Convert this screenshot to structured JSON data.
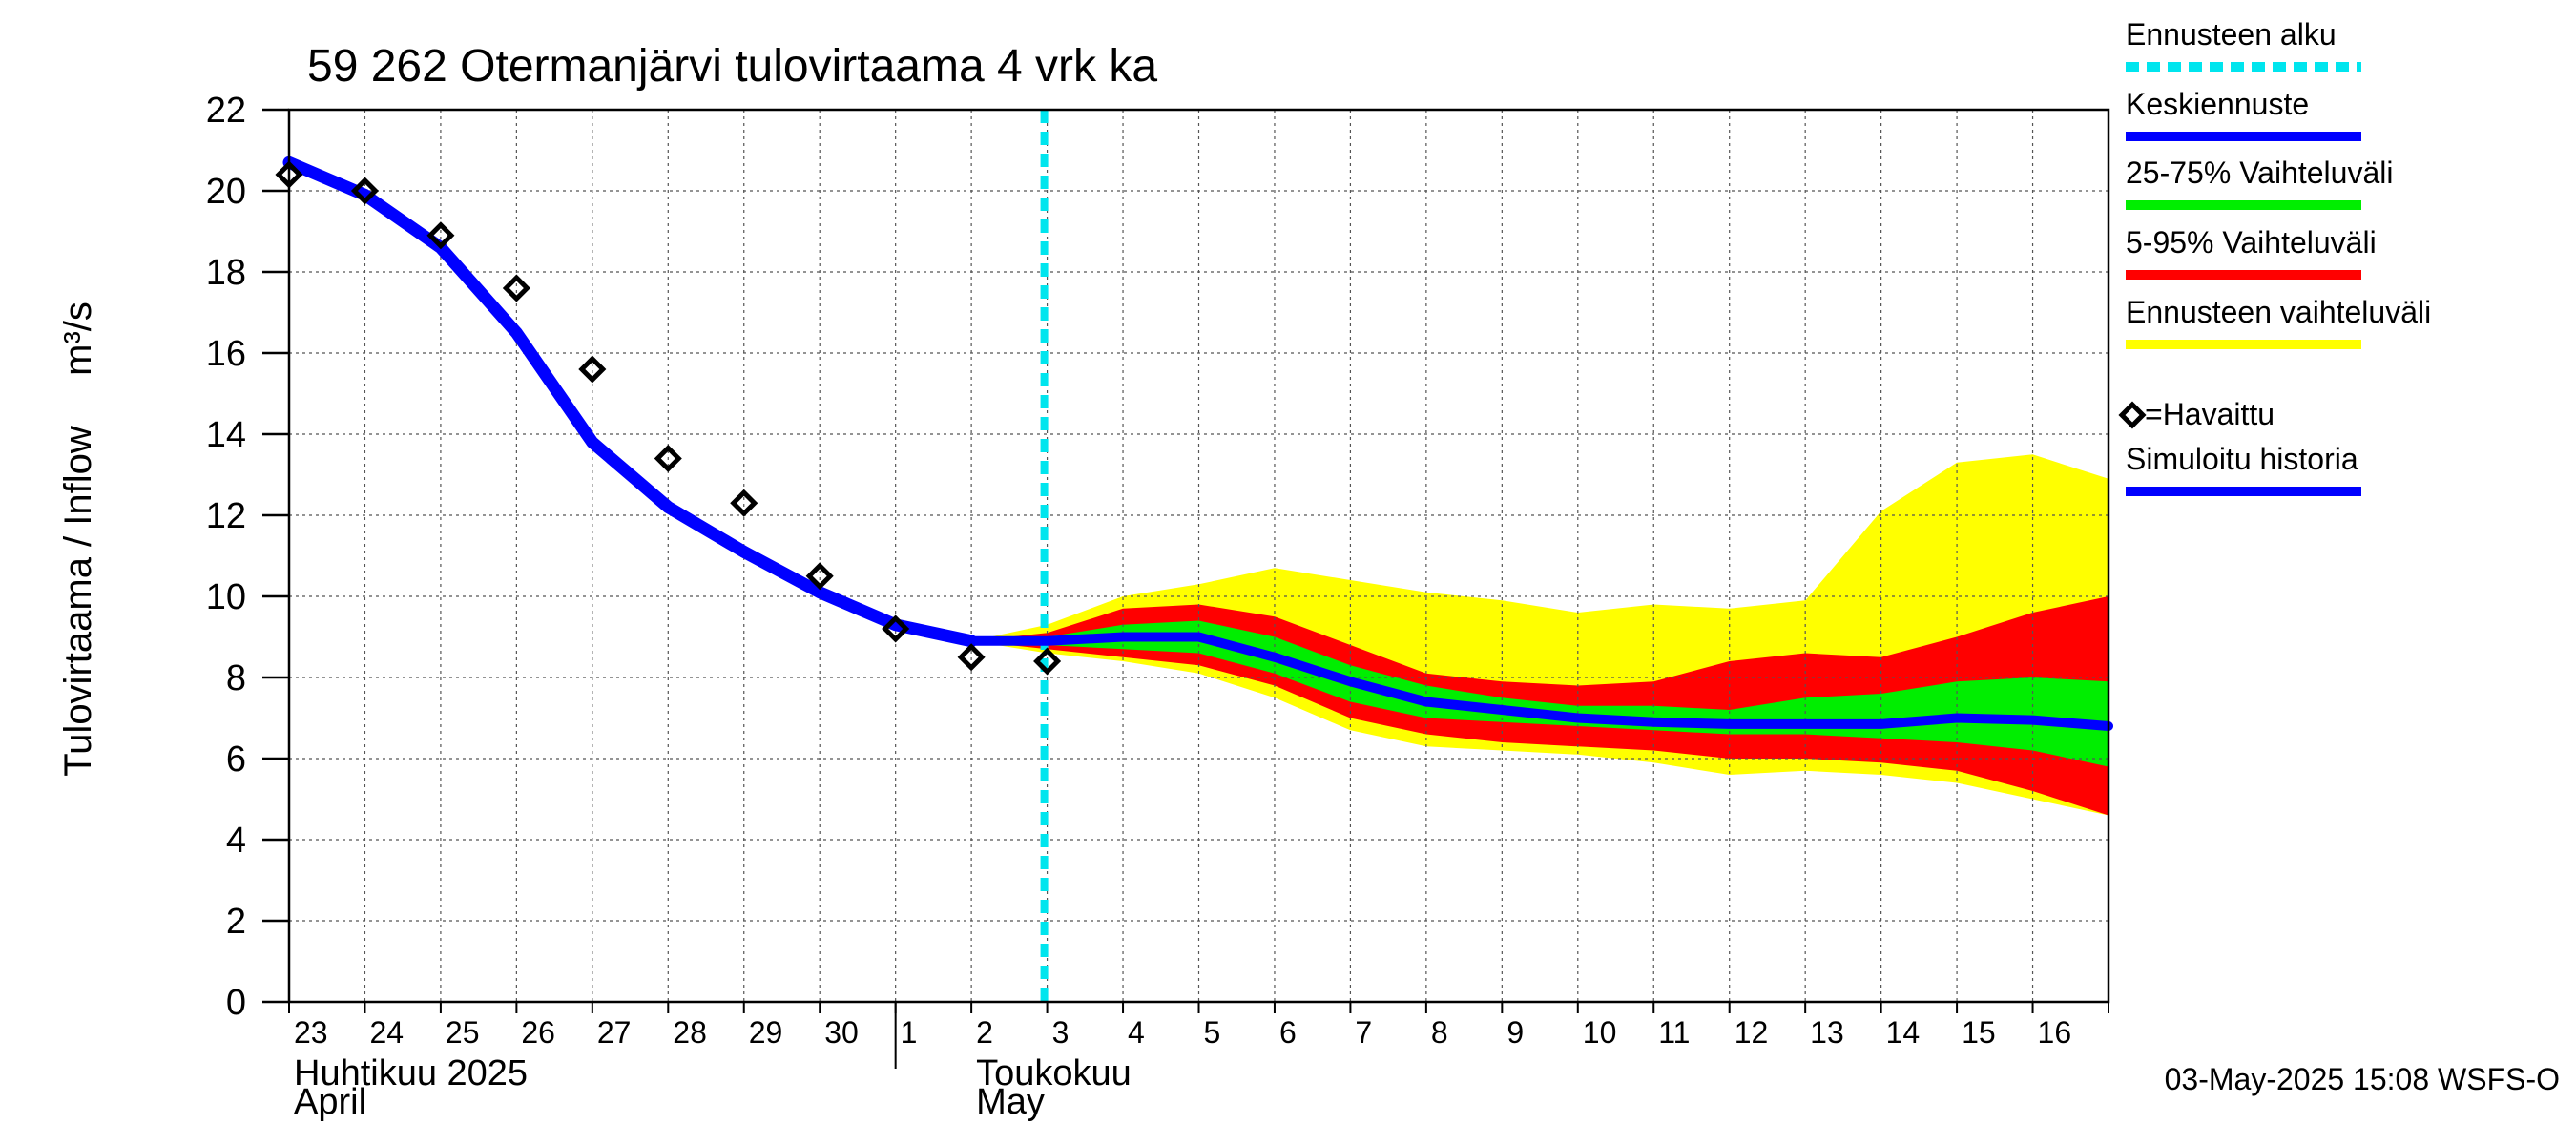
{
  "chart_data": {
    "type": "line",
    "title": "59 262 Otermanjärvi tulovirtaama 4 vrk ka",
    "ylabel": "Tulovirtaama / Inflow    m³/s",
    "ylabel_main": "Tulovirtaama / Inflow",
    "ylabel_unit": "m³/s",
    "ylim": [
      0,
      22
    ],
    "yticks": [
      "0",
      "2",
      "4",
      "6",
      "8",
      "10",
      "12",
      "14",
      "16",
      "18",
      "20",
      "22"
    ],
    "x_start_date": "2025-04-23",
    "x_end_date": "2025-05-17",
    "xtick_labels": [
      "23",
      "24",
      "25",
      "26",
      "27",
      "28",
      "29",
      "30",
      "1",
      "2",
      "3",
      "4",
      "5",
      "6",
      "7",
      "8",
      "9",
      "10",
      "11",
      "12",
      "13",
      "14",
      "15",
      "16"
    ],
    "month_labels": [
      {
        "fi": "Huhtikuu  2025",
        "en": "April",
        "start_date": "2025-04-23"
      },
      {
        "fi": "Toukokuu",
        "en": "May",
        "start_date": "2025-05-02"
      }
    ],
    "month_separator_date": "2025-05-01",
    "forecast_start_date": "2025-05-03",
    "grid": true,
    "legend_position": "right",
    "footer": "03-May-2025 15:08 WSFS-O",
    "legend": [
      {
        "key": "forecast_start",
        "label": "Ennusteen alku",
        "color": "#00e5ee",
        "style": "dashed"
      },
      {
        "key": "median",
        "label": "Keskiennuste",
        "color": "#0000ff",
        "style": "line"
      },
      {
        "key": "p25_75",
        "label": "25-75% Vaihteluväli",
        "color": "#00ee00",
        "style": "line"
      },
      {
        "key": "p5_95",
        "label": "5-95% Vaihteluväli",
        "color": "#ff0000",
        "style": "line"
      },
      {
        "key": "range",
        "label": "Ennusteen vaihteluväli",
        "color": "#ffff00",
        "style": "line"
      },
      {
        "key": "observed",
        "label": "=Havaittu",
        "color": "#000000",
        "style": "marker"
      },
      {
        "key": "simulated",
        "label": "Simuloitu historia",
        "color": "#0000ff",
        "style": "line"
      }
    ],
    "series": [
      {
        "key": "simulated",
        "name": "Simuloitu historia",
        "color": "#0000ff",
        "points": [
          [
            "2025-04-23",
            20.7
          ],
          [
            "2025-04-24",
            19.9
          ],
          [
            "2025-04-25",
            18.6
          ],
          [
            "2025-04-26",
            16.5
          ],
          [
            "2025-04-27",
            13.8
          ],
          [
            "2025-04-28",
            12.2
          ],
          [
            "2025-04-29",
            11.1
          ],
          [
            "2025-04-30",
            10.1
          ],
          [
            "2025-05-01",
            9.3
          ],
          [
            "2025-05-02",
            8.9
          ]
        ]
      },
      {
        "key": "median",
        "name": "Keskiennuste",
        "color": "#0000ff",
        "points": [
          [
            "2025-05-02",
            8.9
          ],
          [
            "2025-05-03",
            8.9
          ],
          [
            "2025-05-04",
            9.0
          ],
          [
            "2025-05-05",
            9.0
          ],
          [
            "2025-05-06",
            8.5
          ],
          [
            "2025-05-07",
            7.9
          ],
          [
            "2025-05-08",
            7.4
          ],
          [
            "2025-05-09",
            7.2
          ],
          [
            "2025-05-10",
            7.0
          ],
          [
            "2025-05-11",
            6.9
          ],
          [
            "2025-05-12",
            6.85
          ],
          [
            "2025-05-13",
            6.85
          ],
          [
            "2025-05-14",
            6.85
          ],
          [
            "2025-05-15",
            7.0
          ],
          [
            "2025-05-16",
            6.95
          ],
          [
            "2025-05-17",
            6.8
          ]
        ]
      },
      {
        "key": "observed",
        "name": "=Havaittu",
        "color": "#000000",
        "points": [
          [
            "2025-04-23",
            20.4
          ],
          [
            "2025-04-24",
            20.0
          ],
          [
            "2025-04-25",
            18.9
          ],
          [
            "2025-04-26",
            17.6
          ],
          [
            "2025-04-27",
            15.6
          ],
          [
            "2025-04-28",
            13.4
          ],
          [
            "2025-04-29",
            12.3
          ],
          [
            "2025-04-30",
            10.5
          ],
          [
            "2025-05-01",
            9.2
          ],
          [
            "2025-05-02",
            8.5
          ],
          [
            "2025-05-03",
            8.4
          ]
        ]
      }
    ],
    "bands": [
      {
        "key": "range",
        "name": "Ennusteen vaihteluväli",
        "color": "#ffff00",
        "dates": [
          "2025-05-02",
          "2025-05-03",
          "2025-05-04",
          "2025-05-05",
          "2025-05-06",
          "2025-05-07",
          "2025-05-08",
          "2025-05-09",
          "2025-05-10",
          "2025-05-11",
          "2025-05-12",
          "2025-05-13",
          "2025-05-14",
          "2025-05-15",
          "2025-05-16",
          "2025-05-17"
        ],
        "upper": [
          8.9,
          9.3,
          10.0,
          10.3,
          10.7,
          10.4,
          10.1,
          9.9,
          9.6,
          9.8,
          9.7,
          9.9,
          12.1,
          13.3,
          13.5,
          12.9
        ],
        "lower": [
          8.9,
          8.6,
          8.4,
          8.1,
          7.5,
          6.7,
          6.3,
          6.2,
          6.1,
          5.9,
          5.6,
          5.7,
          5.6,
          5.4,
          5.0,
          4.6
        ]
      },
      {
        "key": "p5_95",
        "name": "5-95% Vaihteluväli",
        "color": "#ff0000",
        "dates": [
          "2025-05-02",
          "2025-05-03",
          "2025-05-04",
          "2025-05-05",
          "2025-05-06",
          "2025-05-07",
          "2025-05-08",
          "2025-05-09",
          "2025-05-10",
          "2025-05-11",
          "2025-05-12",
          "2025-05-13",
          "2025-05-14",
          "2025-05-15",
          "2025-05-16",
          "2025-05-17"
        ],
        "upper": [
          8.9,
          9.1,
          9.7,
          9.8,
          9.5,
          8.8,
          8.1,
          7.9,
          7.8,
          7.9,
          8.4,
          8.6,
          8.5,
          9.0,
          9.6,
          10.0
        ],
        "lower": [
          8.9,
          8.7,
          8.5,
          8.3,
          7.8,
          7.0,
          6.6,
          6.4,
          6.3,
          6.2,
          6.0,
          6.0,
          5.9,
          5.7,
          5.2,
          4.6
        ]
      },
      {
        "key": "p25_75",
        "name": "25-75% Vaihteluväli",
        "color": "#00ee00",
        "dates": [
          "2025-05-02",
          "2025-05-03",
          "2025-05-04",
          "2025-05-05",
          "2025-05-06",
          "2025-05-07",
          "2025-05-08",
          "2025-05-09",
          "2025-05-10",
          "2025-05-11",
          "2025-05-12",
          "2025-05-13",
          "2025-05-14",
          "2025-05-15",
          "2025-05-16",
          "2025-05-17"
        ],
        "upper": [
          8.9,
          9.0,
          9.3,
          9.4,
          9.0,
          8.3,
          7.8,
          7.5,
          7.3,
          7.3,
          7.2,
          7.5,
          7.6,
          7.9,
          8.0,
          7.9
        ],
        "lower": [
          8.9,
          8.8,
          8.7,
          8.6,
          8.1,
          7.4,
          7.0,
          6.9,
          6.8,
          6.7,
          6.6,
          6.6,
          6.5,
          6.4,
          6.2,
          5.8
        ]
      }
    ]
  }
}
